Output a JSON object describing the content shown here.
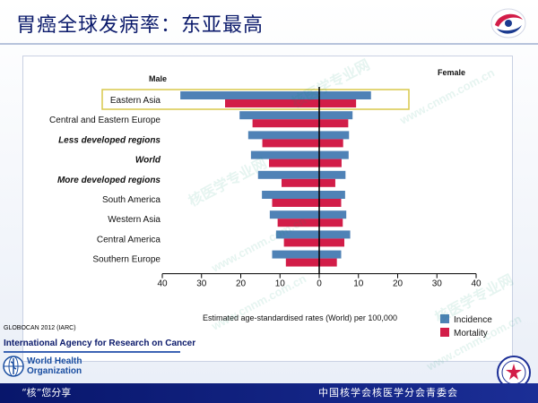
{
  "slide": {
    "title": "胃癌全球发病率：东亚最高",
    "source_text": "GLOBOCAN 2012 (IARC)",
    "agency_text": "International Agency for Research on Cancer",
    "who_line1": "World Health",
    "who_line2": "Organization",
    "footer_left": "“核”您分享",
    "footer_right": "中国核学会核医学分会青委会",
    "watermark_text": "核医学专业网",
    "watermark_url": "www.cnnm.com.cn"
  },
  "colors": {
    "incidence": "#4f82b6",
    "mortality": "#d21d48",
    "highlight": "#d8c84b",
    "footer": "#0b1a6b"
  },
  "chart_data": {
    "type": "bar",
    "orientation": "horizontal-butterfly",
    "left_label": "Male",
    "right_label": "Female",
    "xlabel": "Estimated age-standardised rates (World) per 100,000",
    "x_range": [
      -40,
      40
    ],
    "tick_values": [
      -40,
      -30,
      -20,
      -10,
      0,
      10,
      20,
      30,
      40
    ],
    "tick_labels": [
      "40",
      "30",
      "20",
      "10",
      "0",
      "10",
      "20",
      "30",
      "40"
    ],
    "highlighted_category": "Eastern Asia",
    "categories": [
      {
        "label": "Eastern Asia",
        "emphasis": false
      },
      {
        "label": "Central and Eastern Europe",
        "emphasis": false
      },
      {
        "label": "Less developed regions",
        "emphasis": true
      },
      {
        "label": "World",
        "emphasis": true
      },
      {
        "label": "More developed regions",
        "emphasis": true
      },
      {
        "label": "South America",
        "emphasis": false
      },
      {
        "label": "Western Asia",
        "emphasis": false
      },
      {
        "label": "Central America",
        "emphasis": false
      },
      {
        "label": "Southern Europe",
        "emphasis": false
      }
    ],
    "series": [
      {
        "name": "Incidence",
        "male": [
          35.4,
          20.3,
          18.1,
          17.4,
          15.6,
          14.6,
          12.6,
          11.0,
          12.0
        ],
        "female": [
          13.2,
          8.5,
          7.6,
          7.5,
          6.7,
          6.6,
          6.9,
          7.9,
          5.6
        ]
      },
      {
        "name": "Mortality",
        "male": [
          24.0,
          17.0,
          14.5,
          12.8,
          9.6,
          12.0,
          10.6,
          9.0,
          8.5
        ],
        "female": [
          9.4,
          7.4,
          6.1,
          5.7,
          4.1,
          5.6,
          6.0,
          6.4,
          4.5
        ]
      }
    ],
    "legend": [
      {
        "label": "Incidence",
        "color": "#4f82b6"
      },
      {
        "label": "Mortality",
        "color": "#d21d48"
      }
    ],
    "legend_position": "bottom-right"
  }
}
